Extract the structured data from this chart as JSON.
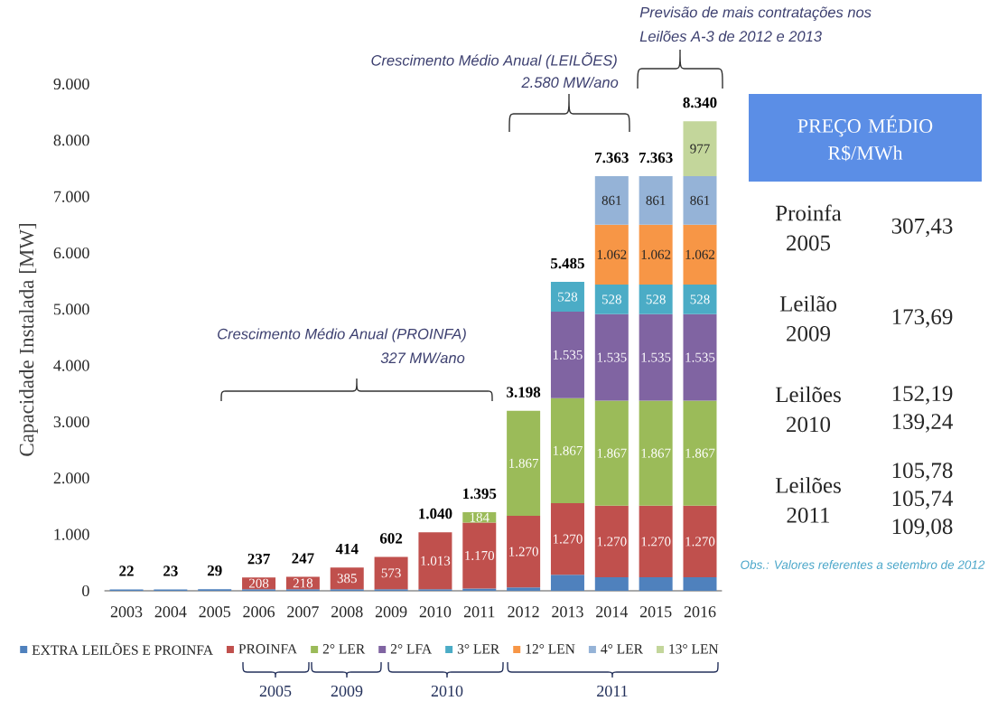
{
  "chart_data": [
    {
      "type": "bar",
      "stacked": true,
      "ylabel": "Capacidade Instalada [MW]",
      "categories": [
        "2003",
        "2004",
        "2005",
        "2006",
        "2007",
        "2008",
        "2009",
        "2010",
        "2011",
        "2012",
        "2013",
        "2014",
        "2015",
        "2016"
      ],
      "ylim": [
        0,
        9000
      ],
      "yticks": [
        0,
        {
          "value": 1000,
          "label": "1.000"
        },
        {
          "value": 2000,
          "label": "2.000"
        },
        {
          "value": 3000,
          "label": "3.000"
        },
        {
          "value": 4000,
          "label": "4.000"
        },
        {
          "value": 5000,
          "label": "5.000"
        },
        {
          "value": 6000,
          "label": "6.000"
        },
        {
          "value": 7000,
          "label": "7.000"
        },
        {
          "value": 8000,
          "label": "8.000"
        },
        {
          "value": 9000,
          "label": "9.000"
        }
      ],
      "legend": "bottom",
      "series": [
        {
          "name": "EXTRA LEILÕES E PROINFA",
          "color": "#4f81bd",
          "values": [
            22,
            23,
            29,
            29,
            29,
            29,
            29,
            27,
            41,
            61,
            285,
            240,
            240,
            240
          ]
        },
        {
          "name": "PROINFA",
          "color": "#c0504d",
          "values": [
            null,
            null,
            null,
            208,
            218,
            385,
            573,
            1013,
            1170,
            1270,
            1270,
            1270,
            1270,
            1270
          ],
          "value_labels": [
            null,
            null,
            null,
            "208",
            "218",
            "385",
            "573",
            "1.013",
            "1.170",
            "1.270",
            "1.270",
            "1.270",
            "1.270",
            "1.270"
          ]
        },
        {
          "name": "2° LER",
          "color": "#9bbb59",
          "values": [
            null,
            null,
            null,
            null,
            null,
            null,
            null,
            null,
            184,
            1867,
            1867,
            1867,
            1867,
            1867
          ],
          "value_labels": [
            null,
            null,
            null,
            null,
            null,
            null,
            null,
            null,
            "184",
            "1.867",
            "1.867",
            "1.867",
            "1.867",
            "1.867"
          ]
        },
        {
          "name": "2° LFA",
          "color": "#8064a2",
          "values": [
            null,
            null,
            null,
            null,
            null,
            null,
            null,
            null,
            null,
            null,
            1535,
            1535,
            1535,
            1535
          ],
          "value_labels": [
            null,
            null,
            null,
            null,
            null,
            null,
            null,
            null,
            null,
            null,
            "1.535",
            "1.535",
            "1.535",
            "1.535"
          ]
        },
        {
          "name": "3° LER",
          "color": "#4bacc6",
          "values": [
            null,
            null,
            null,
            null,
            null,
            null,
            null,
            null,
            null,
            null,
            528,
            528,
            528,
            528
          ],
          "value_labels": [
            null,
            null,
            null,
            null,
            null,
            null,
            null,
            null,
            null,
            null,
            "528",
            "528",
            "528",
            "528"
          ]
        },
        {
          "name": "12° LEN",
          "color": "#f79646",
          "values": [
            null,
            null,
            null,
            null,
            null,
            null,
            null,
            null,
            null,
            null,
            null,
            1062,
            1062,
            1062
          ],
          "value_labels": [
            null,
            null,
            null,
            null,
            null,
            null,
            null,
            null,
            null,
            null,
            null,
            "1.062",
            "1.062",
            "1.062"
          ]
        },
        {
          "name": "4° LER",
          "color": "#95b3d7",
          "values": [
            null,
            null,
            null,
            null,
            null,
            null,
            null,
            null,
            null,
            null,
            null,
            861,
            861,
            861
          ],
          "value_labels": [
            null,
            null,
            null,
            null,
            null,
            null,
            null,
            null,
            null,
            null,
            null,
            "861",
            "861",
            "861"
          ]
        },
        {
          "name": "13° LEN",
          "color": "#c3d69b",
          "values": [
            null,
            null,
            null,
            null,
            null,
            null,
            null,
            null,
            null,
            null,
            null,
            null,
            null,
            977
          ],
          "value_labels": [
            null,
            null,
            null,
            null,
            null,
            null,
            null,
            null,
            null,
            null,
            null,
            null,
            null,
            "977"
          ]
        }
      ],
      "totals": [
        "22",
        "23",
        "29",
        "237",
        "247",
        "414",
        "602",
        "1.040",
        "1.395",
        "3.198",
        "5.485",
        "7.363",
        "7.363",
        "8.340"
      ],
      "annotations": [
        "Crescimento Médio Anual (PROINFA)",
        "327 MW/ano",
        "Crescimento Médio Anual (LEILÕES)",
        "2.580 MW/ano",
        "Previsão de mais contratações nos",
        "Leilões A-3 de 2012 e 2013",
        "2005",
        "2009",
        "2010",
        "2011"
      ]
    },
    {
      "type": "other",
      "title": "PREÇO MÉDIO R$/MWh",
      "annotations": [
        "Proinfa 2005",
        "307,43",
        "Leilão 2009",
        "173,69",
        "Leilões 2010",
        "152,19 139,24",
        "Leilões 2011",
        "105,78 105,74 109,08",
        "Obs.: Valores referentes a setembro de 2012"
      ]
    }
  ]
}
